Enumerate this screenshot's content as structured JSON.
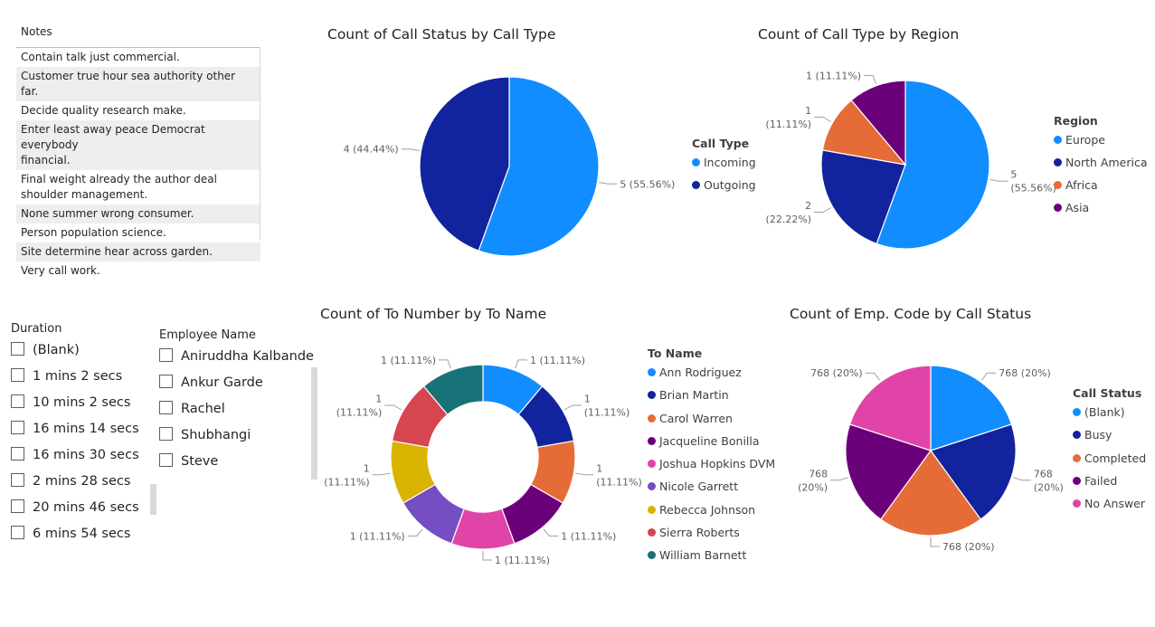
{
  "notes": {
    "header": "Notes",
    "rows": [
      [
        "Contain talk just commercial."
      ],
      [
        "Customer true hour sea authority other far."
      ],
      [
        "Decide quality research make."
      ],
      [
        "Enter least away peace Democrat everybody",
        "financial."
      ],
      [
        "Final weight already the author deal",
        "shoulder management."
      ],
      [
        "None summer wrong consumer."
      ],
      [
        "Person population science."
      ],
      [
        "Site determine hear across garden."
      ],
      [
        "Very call work."
      ]
    ]
  },
  "duration_slicer": {
    "title": "Duration",
    "items": [
      "(Blank)",
      "1 mins 2 secs",
      "10 mins 2 secs",
      "16 mins 14 secs",
      "16 mins 30 secs",
      "2 mins 28 secs",
      "20 mins 46 secs",
      "6 mins 54 secs"
    ]
  },
  "employee_slicer": {
    "title": "Employee Name",
    "items": [
      "Aniruddha Kalbande",
      "Ankur Garde",
      "Rachel",
      "Shubhangi",
      "Steve"
    ]
  },
  "chart_data": [
    {
      "type": "pie",
      "title": "Count of Call Status by Call Type",
      "legend_title": "Call Type",
      "legend_position": "right",
      "categories": [
        "Incoming",
        "Outgoing"
      ],
      "values": [
        5,
        4
      ],
      "data_labels": [
        "5 (55.56%)",
        "4 (44.44%)"
      ],
      "colors": [
        "#118dff",
        "#12239e"
      ]
    },
    {
      "type": "pie",
      "title": "Count of Call Type by Region",
      "legend_title": "Region",
      "legend_position": "right",
      "categories": [
        "Europe",
        "North America",
        "Africa",
        "Asia"
      ],
      "values": [
        5,
        2,
        1,
        1
      ],
      "data_labels": [
        [
          "5",
          "(55.56%)"
        ],
        [
          "2",
          "(22.22%)"
        ],
        [
          "1",
          "(11.11%)"
        ],
        [
          "1 (11.11%)"
        ]
      ],
      "colors": [
        "#118dff",
        "#12239e",
        "#e66c37",
        "#6b007b"
      ]
    },
    {
      "type": "donut",
      "title": "Count of To Number by To Name",
      "legend_title": "To Name",
      "legend_position": "right",
      "categories": [
        "Ann Rodriguez",
        "Brian Martin",
        "Carol Warren",
        "Jacqueline Bonilla",
        "Joshua Hopkins DVM",
        "Nicole Garrett",
        "Rebecca Johnson",
        "Sierra Roberts",
        "William Barnett"
      ],
      "values": [
        1,
        1,
        1,
        1,
        1,
        1,
        1,
        1,
        1
      ],
      "data_labels": [
        [
          "1 (11.11%)"
        ],
        [
          "1",
          "(11.11%)"
        ],
        [
          "1",
          "(11.11%)"
        ],
        [
          "1 (11.11%)"
        ],
        [
          "1 (11.11%)"
        ],
        [
          "1 (11.11%)"
        ],
        [
          "1",
          "(11.11%)"
        ],
        [
          "1",
          "(11.11%)"
        ],
        [
          "1 (11.11%)"
        ]
      ],
      "colors": [
        "#118dff",
        "#12239e",
        "#e66c37",
        "#6b007b",
        "#e044a7",
        "#744ec2",
        "#d9b300",
        "#d64550",
        "#197278"
      ]
    },
    {
      "type": "pie",
      "title": "Count of Emp. Code by Call Status",
      "legend_title": "Call Status",
      "legend_position": "right",
      "categories": [
        "(Blank)",
        "Busy",
        "Completed",
        "Failed",
        "No Answer"
      ],
      "values": [
        768,
        768,
        768,
        768,
        768
      ],
      "data_labels": [
        [
          "768 (20%)"
        ],
        [
          "768",
          "(20%)"
        ],
        [
          "768 (20%)"
        ],
        [
          "768",
          "(20%)"
        ],
        [
          "768 (20%)"
        ]
      ],
      "colors": [
        "#118dff",
        "#12239e",
        "#e66c37",
        "#6b007b",
        "#e044a7"
      ]
    }
  ]
}
